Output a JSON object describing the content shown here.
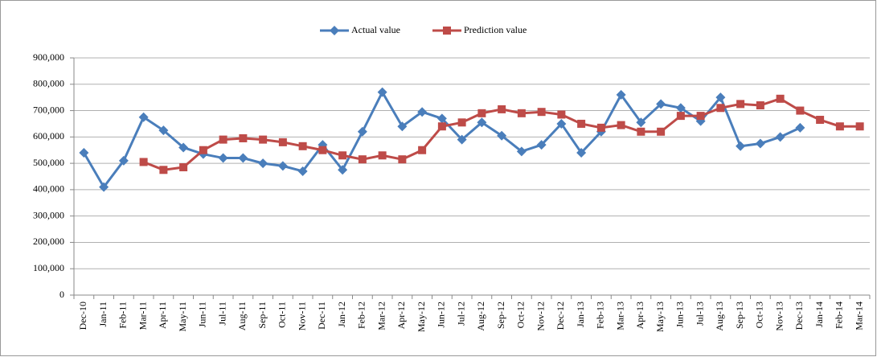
{
  "chart_data": {
    "type": "line",
    "categories": [
      "Dec-10",
      "Jan-11",
      "Feb-11",
      "Mar-11",
      "Apr-11",
      "May-11",
      "Jun-11",
      "Jul-11",
      "Aug-11",
      "Sep-11",
      "Oct-11",
      "Nov-11",
      "Dec-11",
      "Jan-12",
      "Feb-12",
      "Mar-12",
      "Apr-12",
      "May-12",
      "Jun-12",
      "Jul-12",
      "Aug-12",
      "Sep-12",
      "Oct-12",
      "Nov-12",
      "Dec-12",
      "Jan-13",
      "Feb-13",
      "Mar-13",
      "Apr-13",
      "May-13",
      "Jun-13",
      "Jul-13",
      "Aug-13",
      "Sep-13",
      "Oct-13",
      "Nov-13",
      "Dec-13",
      "Jan-14",
      "Feb-14",
      "Mar-14"
    ],
    "series": [
      {
        "name": "Actual value",
        "color": "#4a7ebb",
        "marker": "diamond",
        "values": [
          540000,
          410000,
          510000,
          675000,
          625000,
          560000,
          535000,
          520000,
          520000,
          500000,
          490000,
          470000,
          570000,
          475000,
          620000,
          770000,
          640000,
          695000,
          670000,
          590000,
          655000,
          605000,
          545000,
          570000,
          650000,
          540000,
          620000,
          760000,
          655000,
          725000,
          710000,
          660000,
          750000,
          565000,
          575000,
          600000,
          635000,
          null,
          null,
          null
        ]
      },
      {
        "name": "Prediction value",
        "color": "#be4b48",
        "marker": "square",
        "values": [
          null,
          null,
          null,
          505000,
          475000,
          485000,
          550000,
          590000,
          595000,
          590000,
          580000,
          565000,
          550000,
          530000,
          515000,
          530000,
          515000,
          550000,
          640000,
          655000,
          690000,
          705000,
          690000,
          695000,
          685000,
          650000,
          635000,
          645000,
          620000,
          620000,
          680000,
          680000,
          710000,
          725000,
          720000,
          745000,
          700000,
          665000,
          640000,
          640000
        ]
      }
    ],
    "ylim": [
      0,
      900000
    ],
    "yticks": [
      0,
      {
        "value": 100000,
        "label": "100,000"
      },
      {
        "value": 200000,
        "label": "200,000"
      },
      {
        "value": 300000,
        "label": "300,000"
      },
      {
        "value": 400000,
        "label": "400,000"
      },
      {
        "value": 500000,
        "label": "500,000"
      },
      {
        "value": 600000,
        "label": "600,000"
      },
      {
        "value": 700000,
        "label": "700,000"
      },
      {
        "value": 800000,
        "label": "800,000"
      },
      {
        "value": 900000,
        "label": "900,000"
      }
    ],
    "grid": true,
    "legend": "top"
  }
}
